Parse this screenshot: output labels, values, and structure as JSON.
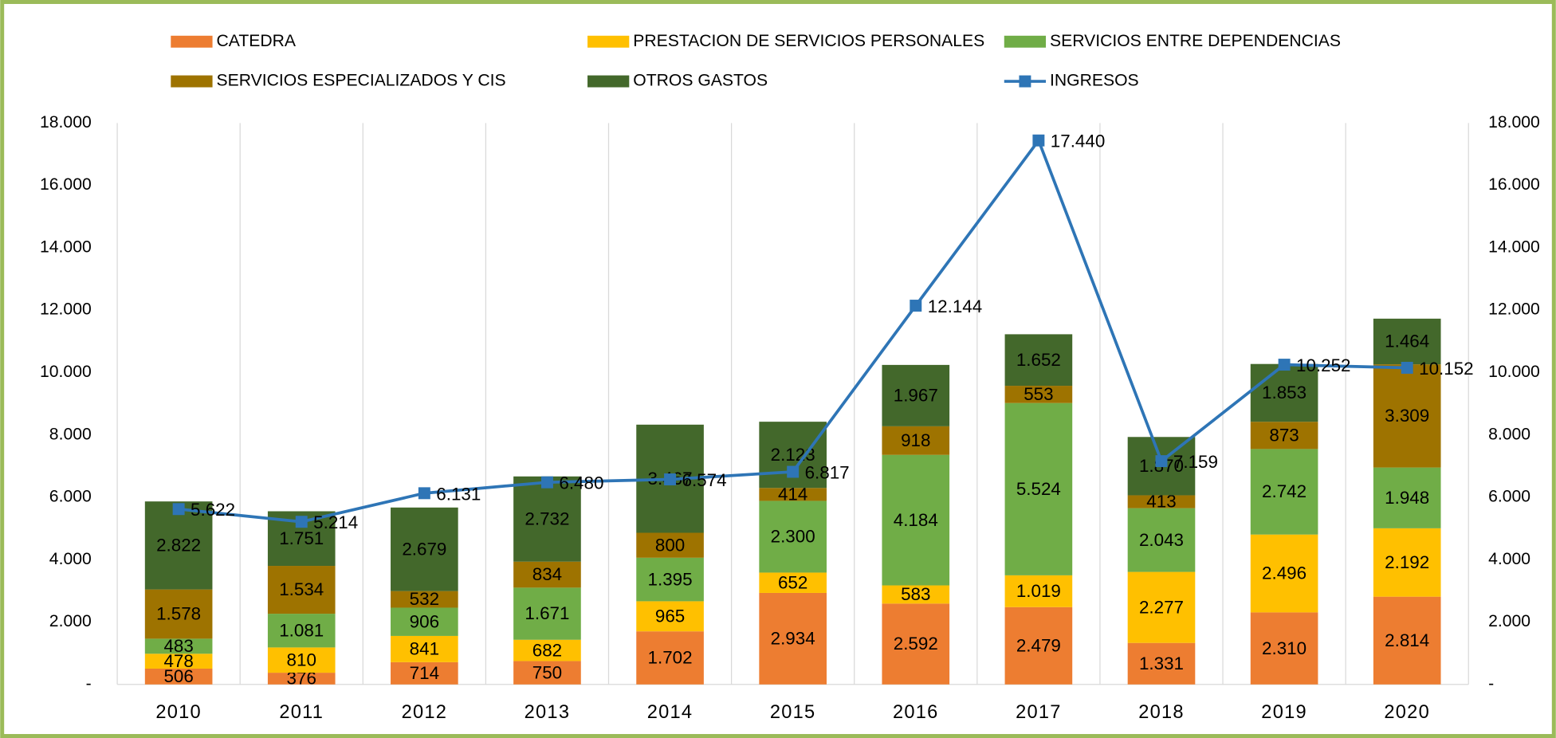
{
  "chart_data": {
    "type": "bar",
    "stacked": true,
    "categories": [
      "2010",
      "2011",
      "2012",
      "2013",
      "2014",
      "2015",
      "2016",
      "2017",
      "2018",
      "2019",
      "2020"
    ],
    "series": [
      {
        "name": "CATEDRA",
        "color": "#ED7D31",
        "values": [
          506,
          376,
          714,
          750,
          1702,
          2934,
          2592,
          2479,
          1331,
          2310,
          2814
        ],
        "value_labels": [
          "506",
          "376",
          "714",
          "750",
          "1.702",
          "2.934",
          "2.592",
          "2.479",
          "1.331",
          "2.310",
          "2.814"
        ]
      },
      {
        "name": "PRESTACION DE SERVICIOS PERSONALES",
        "color": "#FFC000",
        "values": [
          478,
          810,
          841,
          682,
          965,
          652,
          583,
          1019,
          2277,
          2496,
          2192
        ],
        "value_labels": [
          "478",
          "810",
          "841",
          "682",
          "965",
          "652",
          "583",
          "1.019",
          "2.277",
          "2.496",
          "2.192"
        ]
      },
      {
        "name": "SERVICIOS ENTRE DEPENDENCIAS",
        "color": "#70AD47",
        "values": [
          483,
          1081,
          906,
          1671,
          1395,
          2300,
          4184,
          5524,
          2043,
          2742,
          1948
        ],
        "value_labels": [
          "483",
          "1.081",
          "906",
          "1.671",
          "1.395",
          "2.300",
          "4.184",
          "5.524",
          "2.043",
          "2.742",
          "1.948"
        ]
      },
      {
        "name": "SERVICIOS ESPECIALIZADOS Y CIS",
        "color": "#9E7300",
        "values": [
          1578,
          1534,
          532,
          834,
          800,
          414,
          918,
          553,
          413,
          873,
          3309
        ],
        "value_labels": [
          "1.578",
          "1.534",
          "532",
          "834",
          "800",
          "414",
          "918",
          "553",
          "413",
          "873",
          "3.309"
        ]
      },
      {
        "name": "OTROS GASTOS",
        "color": "#43682B",
        "values": [
          2822,
          1751,
          2679,
          2732,
          3467,
          2123,
          1967,
          1652,
          1870,
          1853,
          1464
        ],
        "value_labels": [
          "2.822",
          "1.751",
          "2.679",
          "2.732",
          "3.467",
          "2.123",
          "1.967",
          "1.652",
          "1.870",
          "1.853",
          "1.464"
        ]
      },
      {
        "name": "INGRESOS",
        "color": "#2E75B6",
        "type": "line",
        "axis": "y2",
        "values": [
          5622,
          5214,
          6131,
          6480,
          6574,
          6817,
          12144,
          17440,
          7159,
          10252,
          10152
        ],
        "value_labels": [
          "5.622",
          "5.214",
          "6.131",
          "6.480",
          "6.574",
          "6.817",
          "12.144",
          "17.440",
          "7.159",
          "10.252",
          "10.152"
        ]
      }
    ],
    "ylim": [
      0,
      18000
    ],
    "yticks": [
      {
        "value": 0,
        "label": "-"
      },
      {
        "value": 2000,
        "label": "2.000"
      },
      {
        "value": 4000,
        "label": "4.000"
      },
      {
        "value": 6000,
        "label": "6.000"
      },
      {
        "value": 8000,
        "label": "8.000"
      },
      {
        "value": 10000,
        "label": "10.000"
      },
      {
        "value": 12000,
        "label": "12.000"
      },
      {
        "value": 14000,
        "label": "14.000"
      },
      {
        "value": 16000,
        "label": "16.000"
      },
      {
        "value": 18000,
        "label": "18.000"
      }
    ],
    "y2lim": [
      0,
      18000
    ],
    "y2ticks": [
      {
        "value": 0,
        "label": "-"
      },
      {
        "value": 2000,
        "label": "2.000"
      },
      {
        "value": 4000,
        "label": "4.000"
      },
      {
        "value": 6000,
        "label": "6.000"
      },
      {
        "value": 8000,
        "label": "8.000"
      },
      {
        "value": 10000,
        "label": "10.000"
      },
      {
        "value": 12000,
        "label": "12.000"
      },
      {
        "value": 14000,
        "label": "14.000"
      },
      {
        "value": 16000,
        "label": "16.000"
      },
      {
        "value": 18000,
        "label": "18.000"
      }
    ],
    "grid": true,
    "legend": "top"
  }
}
